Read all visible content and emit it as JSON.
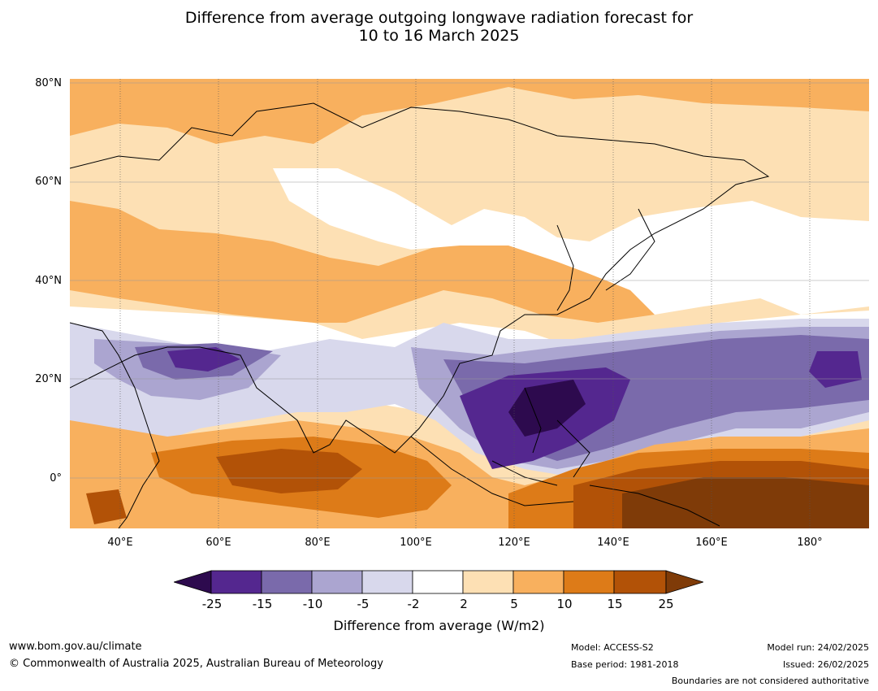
{
  "title": {
    "line1": "Difference from average outgoing longwave radiation forecast for",
    "line2": "10 to 16 March 2025"
  },
  "map": {
    "lat_labels": [
      "80°N",
      "60°N",
      "40°N",
      "20°N",
      "0°"
    ],
    "lon_labels": [
      "40°E",
      "60°E",
      "80°E",
      "100°E",
      "120°E",
      "140°E",
      "160°E",
      "180°"
    ],
    "colors": {
      "ocean_default": "#fde0b4",
      "land_outline": "#000000",
      "border_outline": "#808080",
      "gridline": "#555555"
    }
  },
  "colorbar": {
    "ticks": [
      "-25",
      "-15",
      "-10",
      "-5",
      "-2",
      "2",
      "5",
      "10",
      "15",
      "25"
    ],
    "label": "Difference from average (W/m2)",
    "colors": [
      "#2d0a4e",
      "#54278f",
      "#7a6aab",
      "#aba5d0",
      "#d8d8ec",
      "#ffffff",
      "#fde0b4",
      "#f8b05e",
      "#dd7b18",
      "#b25207",
      "#7f3b08"
    ]
  },
  "footer": {
    "website": "www.bom.gov.au/climate",
    "copyright": "© Commonwealth of Australia 2025, Australian Bureau of Meteorology",
    "model": "Model: ACCESS-S2",
    "base_period": "Base period: 1981-2018",
    "model_run": "Model run: 24/02/2025",
    "issued": "Issued: 26/02/2025",
    "disclaimer": "Boundaries are not considered authoritative"
  }
}
